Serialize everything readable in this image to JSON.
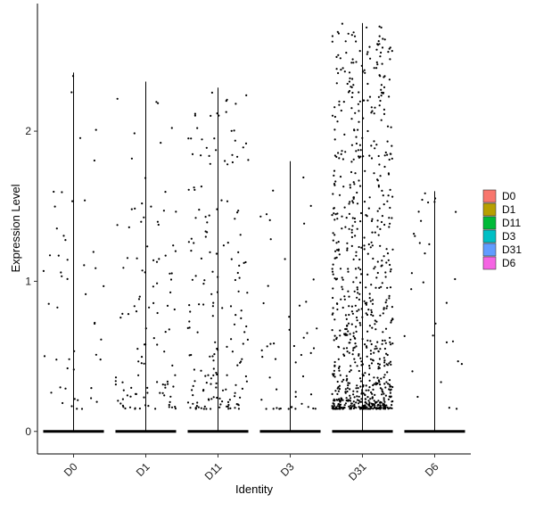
{
  "chart_data": {
    "type": "violin-scatter",
    "title": "",
    "xlabel": "Identity",
    "ylabel": "Expression Level",
    "categories": [
      "D0",
      "D1",
      "D11",
      "D3",
      "D31",
      "D6"
    ],
    "yticks": [
      "0",
      "1",
      "2"
    ],
    "ylim": [
      -0.15,
      2.85
    ],
    "legend": {
      "position": "right",
      "entries": [
        {
          "label": "D0",
          "color": "#F8766D"
        },
        {
          "label": "D1",
          "color": "#B79F00"
        },
        {
          "label": "D11",
          "color": "#00BA38"
        },
        {
          "label": "D3",
          "color": "#00BFC4"
        },
        {
          "label": "D31",
          "color": "#619CFF"
        },
        {
          "label": "D6",
          "color": "#F564E3"
        }
      ]
    },
    "series": [
      {
        "category": "D0",
        "max": 2.39,
        "nonzero_points": 50
      },
      {
        "category": "D1",
        "max": 2.33,
        "nonzero_points": 110
      },
      {
        "category": "D11",
        "max": 2.29,
        "nonzero_points": 180
      },
      {
        "category": "D3",
        "max": 1.8,
        "nonzero_points": 50
      },
      {
        "category": "D31",
        "max": 2.72,
        "nonzero_points": 820
      },
      {
        "category": "D6",
        "max": 1.6,
        "nonzero_points": 30
      }
    ],
    "point_color": "#000000",
    "grid": false
  }
}
